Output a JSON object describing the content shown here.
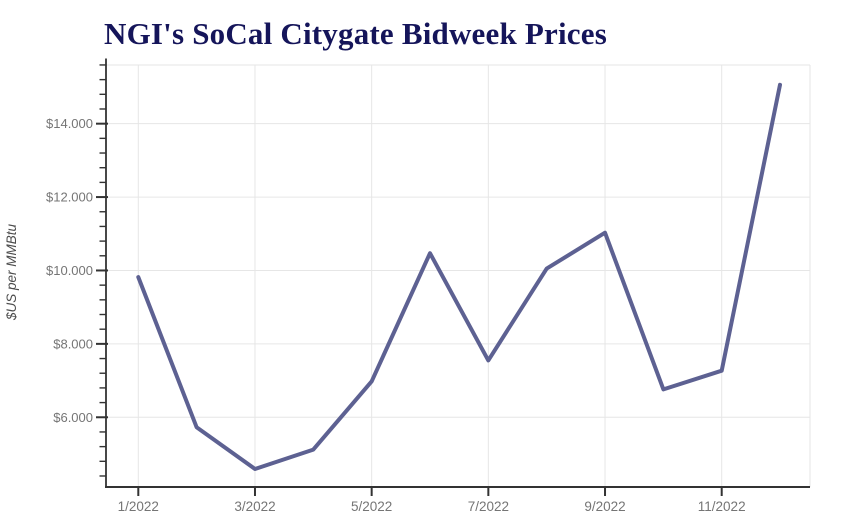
{
  "title": "NGI's SoCal Citygate Bidweek Prices",
  "colors": {
    "title": "#15155a",
    "line": "#5d6192",
    "grid": "#e6e6e6",
    "axis": "#333333",
    "tick_label": "#757575",
    "axis_title": "#4d4d4d",
    "background": "#ffffff"
  },
  "chart_data": {
    "type": "line",
    "title": "NGI's SoCal Citygate Bidweek Prices",
    "xlabel": "",
    "ylabel": "$US per MMBtu",
    "x": [
      "1/2022",
      "2/2022",
      "3/2022",
      "4/2022",
      "5/2022",
      "6/2022",
      "7/2022",
      "8/2022",
      "9/2022",
      "10/2022",
      "11/2022",
      "12/2022"
    ],
    "x_tick_labels": [
      "1/2022",
      "3/2022",
      "5/2022",
      "7/2022",
      "9/2022",
      "11/2022"
    ],
    "x_tick_indices": [
      0,
      2,
      4,
      6,
      8,
      10
    ],
    "series": [
      {
        "name": "",
        "values": [
          9.82,
          5.73,
          4.59,
          5.12,
          6.98,
          10.47,
          7.55,
          10.05,
          11.03,
          6.76,
          7.27,
          15.06
        ]
      }
    ],
    "y_major_ticks": [
      6,
      8,
      10,
      12,
      14
    ],
    "y_tick_labels": [
      "$6.000",
      "$8.000",
      "$10.000",
      "$12.000",
      "$14.000"
    ],
    "y_minor_step": 0.4,
    "ylim": [
      4.1,
      15.6
    ],
    "grid": true,
    "legend": "none"
  }
}
